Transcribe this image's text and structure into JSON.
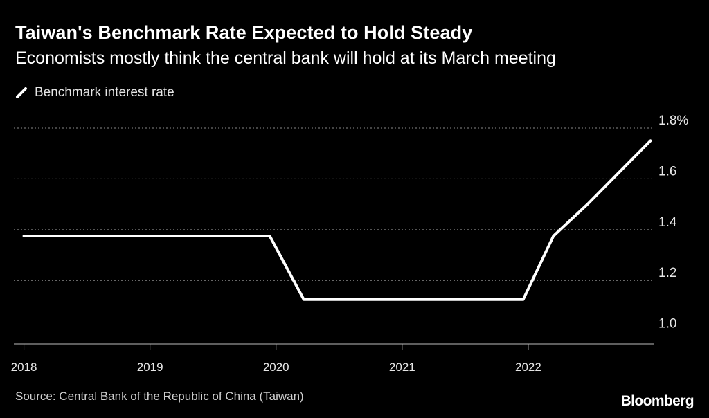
{
  "header": {
    "title": "Taiwan's Benchmark Rate Expected to Hold Steady",
    "subtitle": "Economists mostly think the central bank will hold at its March meeting"
  },
  "legend": {
    "label": "Benchmark interest rate"
  },
  "footer": {
    "source": "Source: Central Bank of the Republic of China (Taiwan)",
    "logo": "Bloomberg"
  },
  "colors": {
    "background": "#000000",
    "line": "#ffffff",
    "grid": "#8a8a8a",
    "text": "#e6e6e6"
  },
  "chart_data": {
    "type": "line",
    "series": [
      {
        "name": "Benchmark interest rate",
        "x": [
          2018.0,
          2019.95,
          2020.22,
          2021.96,
          2022.2,
          2022.47,
          2022.72,
          2022.97
        ],
        "values": [
          1.375,
          1.375,
          1.125,
          1.125,
          1.375,
          1.5,
          1.625,
          1.75
        ]
      }
    ],
    "xticks": [
      2018,
      2019,
      2020,
      2021,
      2022
    ],
    "xtick_labels": [
      "2018",
      "2019",
      "2020",
      "2021",
      "2022"
    ],
    "yticks": [
      1.0,
      1.2,
      1.4,
      1.6,
      1.8
    ],
    "ytick_labels": [
      "1.0",
      "1.2",
      "1.4",
      "1.6",
      "1.8%"
    ],
    "xlim": [
      2017.92,
      2023.0
    ],
    "ylim": [
      0.95,
      1.8
    ],
    "grid": "horizontal dotted",
    "legend_position": "top-left"
  }
}
